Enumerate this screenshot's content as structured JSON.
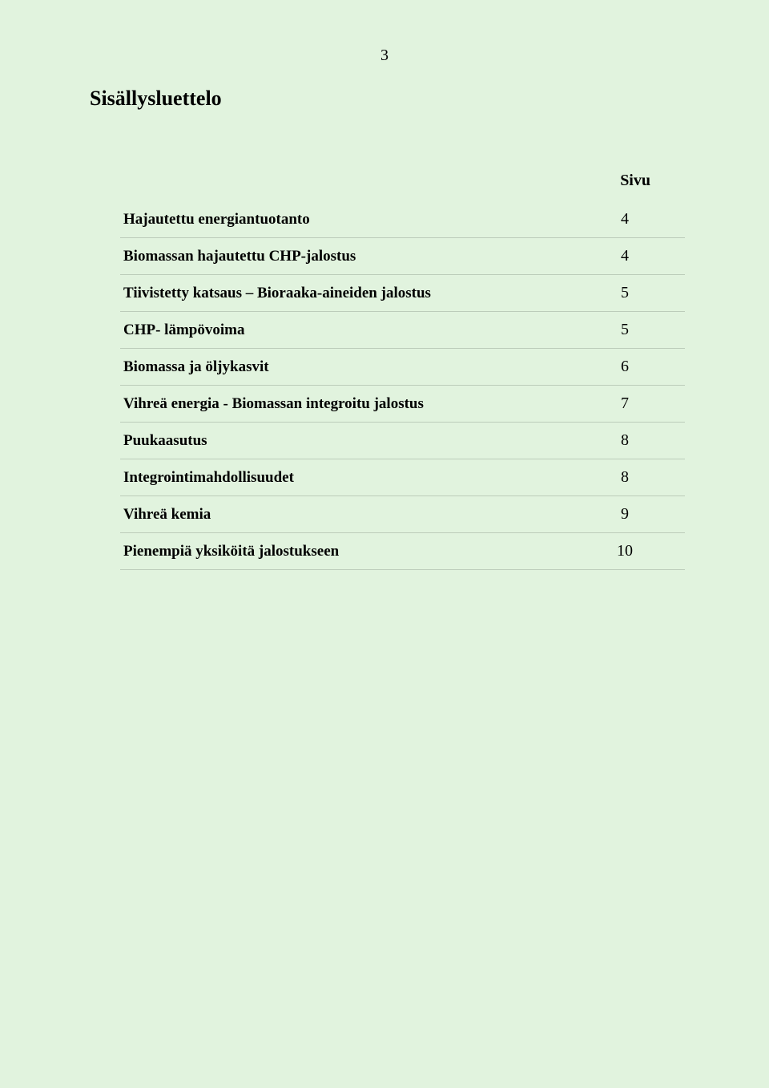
{
  "page_number": "3",
  "heading": "Sisällysluettelo",
  "column_header": "Sivu",
  "background_color": "#e1f3de",
  "text_color": "#000000",
  "rule_color": "#bcccba",
  "title_font_size": 19,
  "title_font_weight": "bold",
  "page_font_size": 20,
  "heading_font_size": 26,
  "toc": [
    {
      "title": "Hajautettu energiantuotanto",
      "page": "4"
    },
    {
      "title": "Biomassan hajautettu CHP-jalostus",
      "page": "4"
    },
    {
      "title": "Tiivistetty katsaus – Bioraaka-aineiden jalostus",
      "page": "5"
    },
    {
      "title": "CHP- lämpövoima",
      "page": "5"
    },
    {
      "title": "Biomassa ja öljykasvit",
      "page": "6"
    },
    {
      "title": "Vihreä energia - Biomassan integroitu jalostus",
      "page": "7"
    },
    {
      "title": "Puukaasutus",
      "page": "8"
    },
    {
      "title": "Integrointimahdollisuudet",
      "page": "8"
    },
    {
      "title": "Vihreä kemia",
      "page": "9"
    },
    {
      "title": "Pienempiä yksiköitä jalostukseen",
      "page": "10"
    }
  ]
}
